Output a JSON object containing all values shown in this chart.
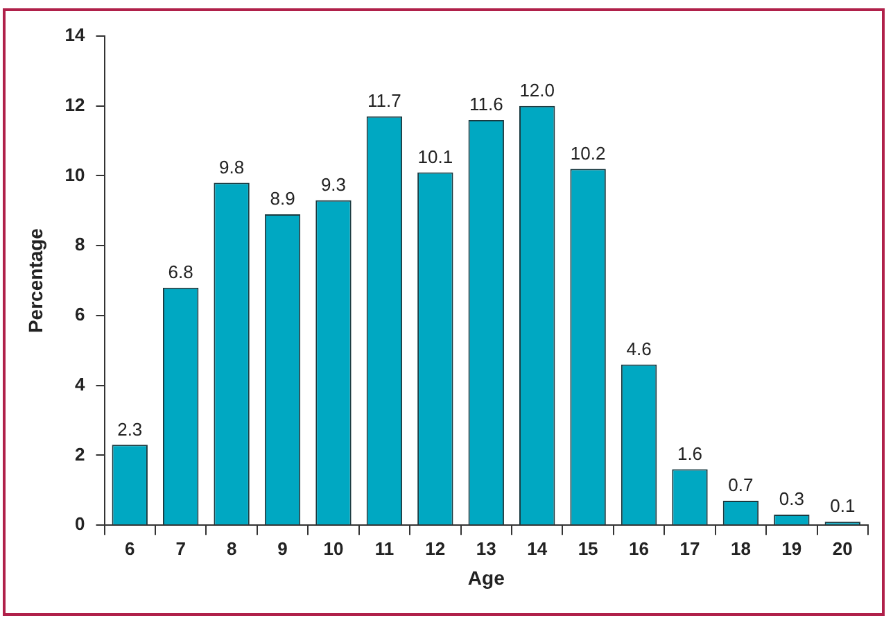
{
  "chart_data": {
    "type": "bar",
    "xlabel": "Age",
    "ylabel": "Percentage",
    "categories": [
      "6",
      "7",
      "8",
      "9",
      "10",
      "11",
      "12",
      "13",
      "14",
      "15",
      "16",
      "17",
      "18",
      "19",
      "20"
    ],
    "values": [
      2.3,
      6.8,
      9.8,
      8.9,
      9.3,
      11.7,
      10.1,
      11.6,
      12.0,
      10.2,
      4.6,
      1.6,
      0.7,
      0.3,
      0.1
    ],
    "value_labels": [
      "2.3",
      "6.8",
      "9.8",
      "8.9",
      "9.3",
      "11.7",
      "10.1",
      "11.6",
      "12.0",
      "10.2",
      "4.6",
      "1.6",
      "0.7",
      "0.3",
      "0.1"
    ],
    "color": "#00a8c2",
    "ylim": [
      0,
      14
    ],
    "yticks": [
      0,
      2,
      4,
      6,
      8,
      10,
      12,
      14
    ]
  }
}
